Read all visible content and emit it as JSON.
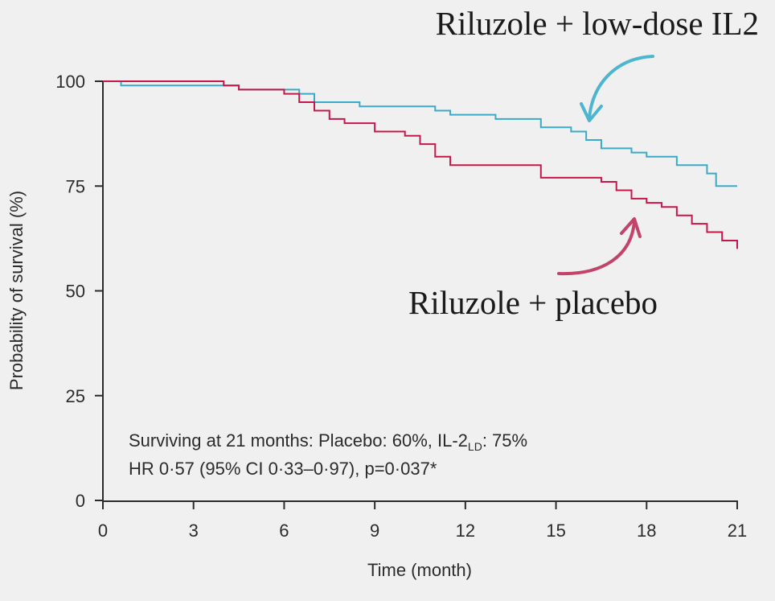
{
  "chart_data": {
    "type": "line",
    "title": "",
    "xlabel": "Time (month)",
    "ylabel": "Probability of survival (%)",
    "xlim": [
      0,
      21
    ],
    "ylim": [
      0,
      100
    ],
    "xticks": [
      0,
      3,
      6,
      9,
      12,
      15,
      18,
      21
    ],
    "yticks": [
      0,
      25,
      50,
      75,
      100
    ],
    "grid": false,
    "step": true,
    "series": [
      {
        "name": "Riluzole + low-dose IL2",
        "color": "#3aaac6",
        "x": [
          0,
          0.6,
          4.5,
          6.5,
          7.0,
          8.5,
          11.0,
          11.5,
          13.0,
          14.5,
          15.5,
          16.0,
          16.5,
          17.5,
          18.0,
          19.0,
          20.0,
          20.3,
          21.0
        ],
        "y": [
          100,
          99,
          98,
          97,
          95,
          94,
          93,
          92,
          91,
          89,
          88,
          86,
          84,
          83,
          82,
          80,
          78,
          75,
          75
        ]
      },
      {
        "name": "Riluzole + placebo",
        "color": "#c4184b",
        "x": [
          0,
          4.0,
          4.5,
          6.0,
          6.5,
          7.0,
          7.5,
          8.0,
          9.0,
          10.0,
          10.5,
          11.0,
          11.5,
          14.5,
          16.5,
          17.0,
          17.5,
          18.0,
          18.5,
          19.0,
          19.5,
          20.0,
          20.5,
          21.0
        ],
        "y": [
          100,
          99,
          98,
          97,
          95,
          93,
          91,
          90,
          88,
          87,
          85,
          82,
          80,
          77,
          76,
          74,
          72,
          71,
          70,
          68,
          66,
          64,
          62,
          60
        ]
      }
    ],
    "annotations": {
      "il2_label": "Riluzole + low-dose IL2",
      "placebo_label": "Riluzole + placebo",
      "stats_line1_prefix": "Surviving at 21 months: Placebo: 60%, IL-2",
      "stats_line1_sub": "LD",
      "stats_line1_suffix": ": 75%",
      "stats_line2": "HR 0·57 (95% CI 0·33–0·97), p=0·037*"
    }
  }
}
